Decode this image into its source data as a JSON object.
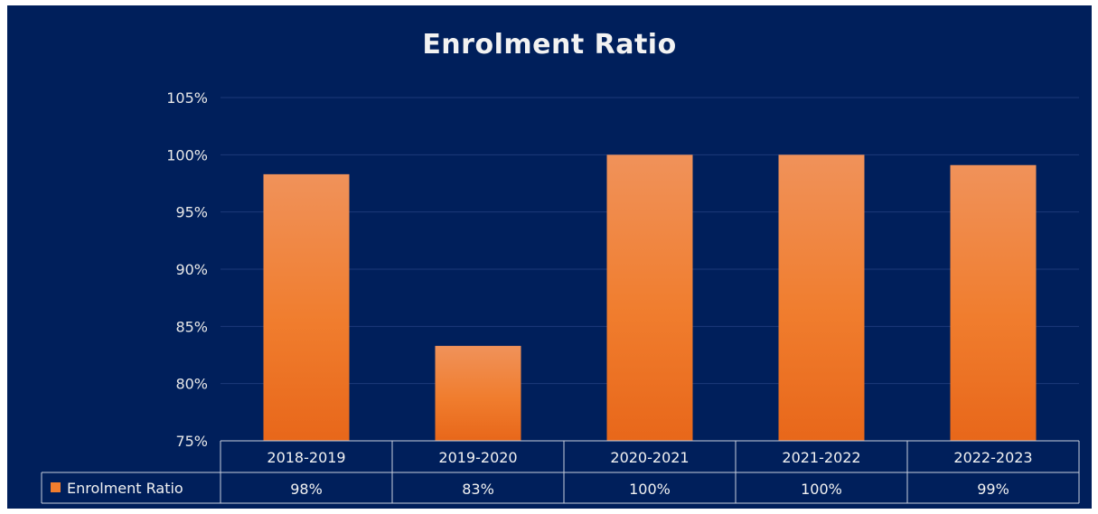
{
  "chart_data": {
    "type": "bar",
    "title": "Enrolment Ratio",
    "categories": [
      "2018-2019",
      "2019-2020",
      "2020-2021",
      "2021-2022",
      "2022-2023"
    ],
    "series": [
      {
        "name": "Enrolment Ratio",
        "values": [
          98.3,
          83.3,
          100,
          100,
          99.1
        ]
      }
    ],
    "data_table_labels": [
      "98%",
      "83%",
      "100%",
      "100%",
      "99%"
    ],
    "ylim": [
      75,
      105
    ],
    "yticks": [
      "75%",
      "80%",
      "85%",
      "90%",
      "95%",
      "100%",
      "105%"
    ],
    "ytick_values": [
      75,
      80,
      85,
      90,
      95,
      100,
      105
    ],
    "grid": true,
    "legend_placement": "data-table",
    "colors": {
      "background": "#001f5b",
      "bar_top": "#f0925a",
      "bar_bottom": "#e8671a",
      "grid": "#1d3a7a",
      "table_border": "#c9cfdc",
      "text": "#f2f2f2"
    }
  }
}
